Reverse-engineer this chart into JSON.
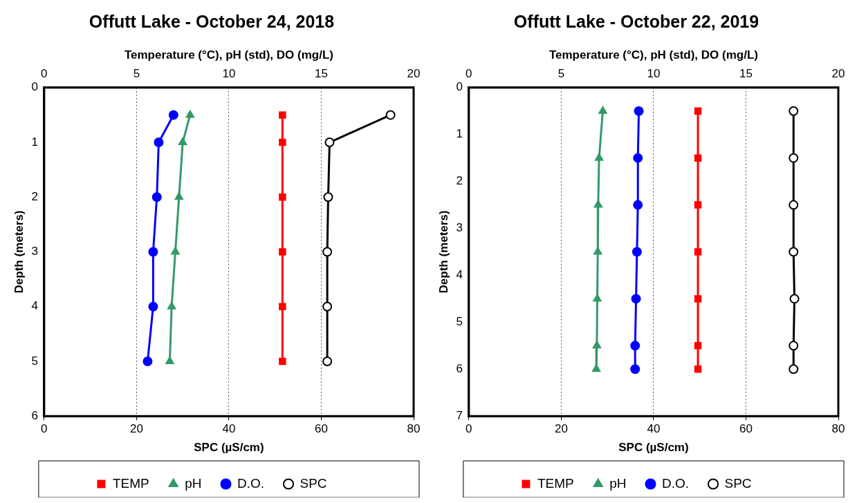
{
  "chart_data": [
    {
      "type": "line",
      "title": "Offutt Lake - October 24, 2018",
      "xlabel": "SPC (µS/cm)",
      "x2label": "Temperature (°C), pH (std), DO (mg/L)",
      "ylabel": "Depth (meters)",
      "xlim": [
        0,
        80
      ],
      "xticks": [
        0,
        20,
        40,
        60,
        80
      ],
      "x2lim": [
        0,
        20
      ],
      "x2ticks": [
        0,
        5,
        10,
        15,
        20
      ],
      "ylim": [
        6,
        0
      ],
      "yticks": [
        0,
        1,
        2,
        3,
        4,
        5,
        6
      ],
      "grid": "x",
      "legend": "bottom",
      "line_style": "solid",
      "series": [
        {
          "name": "TEMP",
          "color": "#ff0000",
          "marker": "square",
          "axis": "x2",
          "x": [
            12.9,
            12.9,
            12.9,
            12.9,
            12.9,
            12.9
          ],
          "values": [
            0.5,
            1,
            2,
            3,
            4,
            5
          ]
        },
        {
          "name": "pH",
          "color": "#339966",
          "marker": "triangle",
          "axis": "x2",
          "x": [
            7.9,
            7.5,
            7.3,
            7.1,
            6.9,
            6.8
          ],
          "values": [
            0.5,
            1,
            2,
            3,
            4,
            5
          ]
        },
        {
          "name": "D.O.",
          "color": "#0000ff",
          "marker": "circle",
          "axis": "x2",
          "x": [
            7.0,
            6.2,
            6.1,
            5.9,
            5.9,
            5.6
          ],
          "values": [
            0.5,
            1,
            2,
            3,
            4,
            5
          ]
        },
        {
          "name": "SPC",
          "color": "#000000",
          "marker": "circle",
          "x": [
            75.0,
            61.8,
            61.5,
            61.3,
            61.3,
            61.3
          ],
          "values": [
            0.5,
            1,
            2,
            3,
            4,
            5
          ]
        }
      ]
    },
    {
      "type": "line",
      "title": "Offutt Lake - October 22, 2019",
      "xlabel": "SPC (µS/cm)",
      "x2label": "Temperature (°C), pH (std), DO (mg/L)",
      "ylabel": "Depth (meters)",
      "xlim": [
        0,
        80
      ],
      "xticks": [
        0,
        20,
        40,
        60,
        80
      ],
      "x2lim": [
        0,
        20
      ],
      "x2ticks": [
        0,
        5,
        10,
        15,
        20
      ],
      "ylim": [
        7,
        0
      ],
      "yticks": [
        0,
        1,
        2,
        3,
        4,
        5,
        6,
        7
      ],
      "grid": "x",
      "legend": "bottom",
      "line_style": "solid",
      "series": [
        {
          "name": "TEMP",
          "color": "#ff0000",
          "marker": "square",
          "axis": "x2",
          "x": [
            12.4,
            12.4,
            12.4,
            12.4,
            12.4,
            12.4,
            12.4
          ],
          "values": [
            0.5,
            1.5,
            2.5,
            3.5,
            4.5,
            5.5,
            6
          ]
        },
        {
          "name": "pH",
          "color": "#339966",
          "marker": "triangle",
          "axis": "x2",
          "x": [
            7.25,
            7.05,
            7.0,
            6.98,
            6.95,
            6.93,
            6.9
          ],
          "values": [
            0.5,
            1.5,
            2.5,
            3.5,
            4.5,
            5.5,
            6
          ]
        },
        {
          "name": "D.O.",
          "color": "#0000ff",
          "marker": "circle",
          "axis": "x2",
          "x": [
            9.2,
            9.15,
            9.15,
            9.1,
            9.05,
            9.0,
            9.0
          ],
          "values": [
            0.5,
            1.5,
            2.5,
            3.5,
            4.5,
            5.5,
            6
          ]
        },
        {
          "name": "SPC",
          "color": "#000000",
          "marker": "circle",
          "x": [
            70.3,
            70.3,
            70.3,
            70.3,
            70.5,
            70.3,
            70.3
          ],
          "values": [
            0.5,
            1.5,
            2.5,
            3.5,
            4.5,
            5.5,
            6
          ]
        }
      ]
    }
  ]
}
